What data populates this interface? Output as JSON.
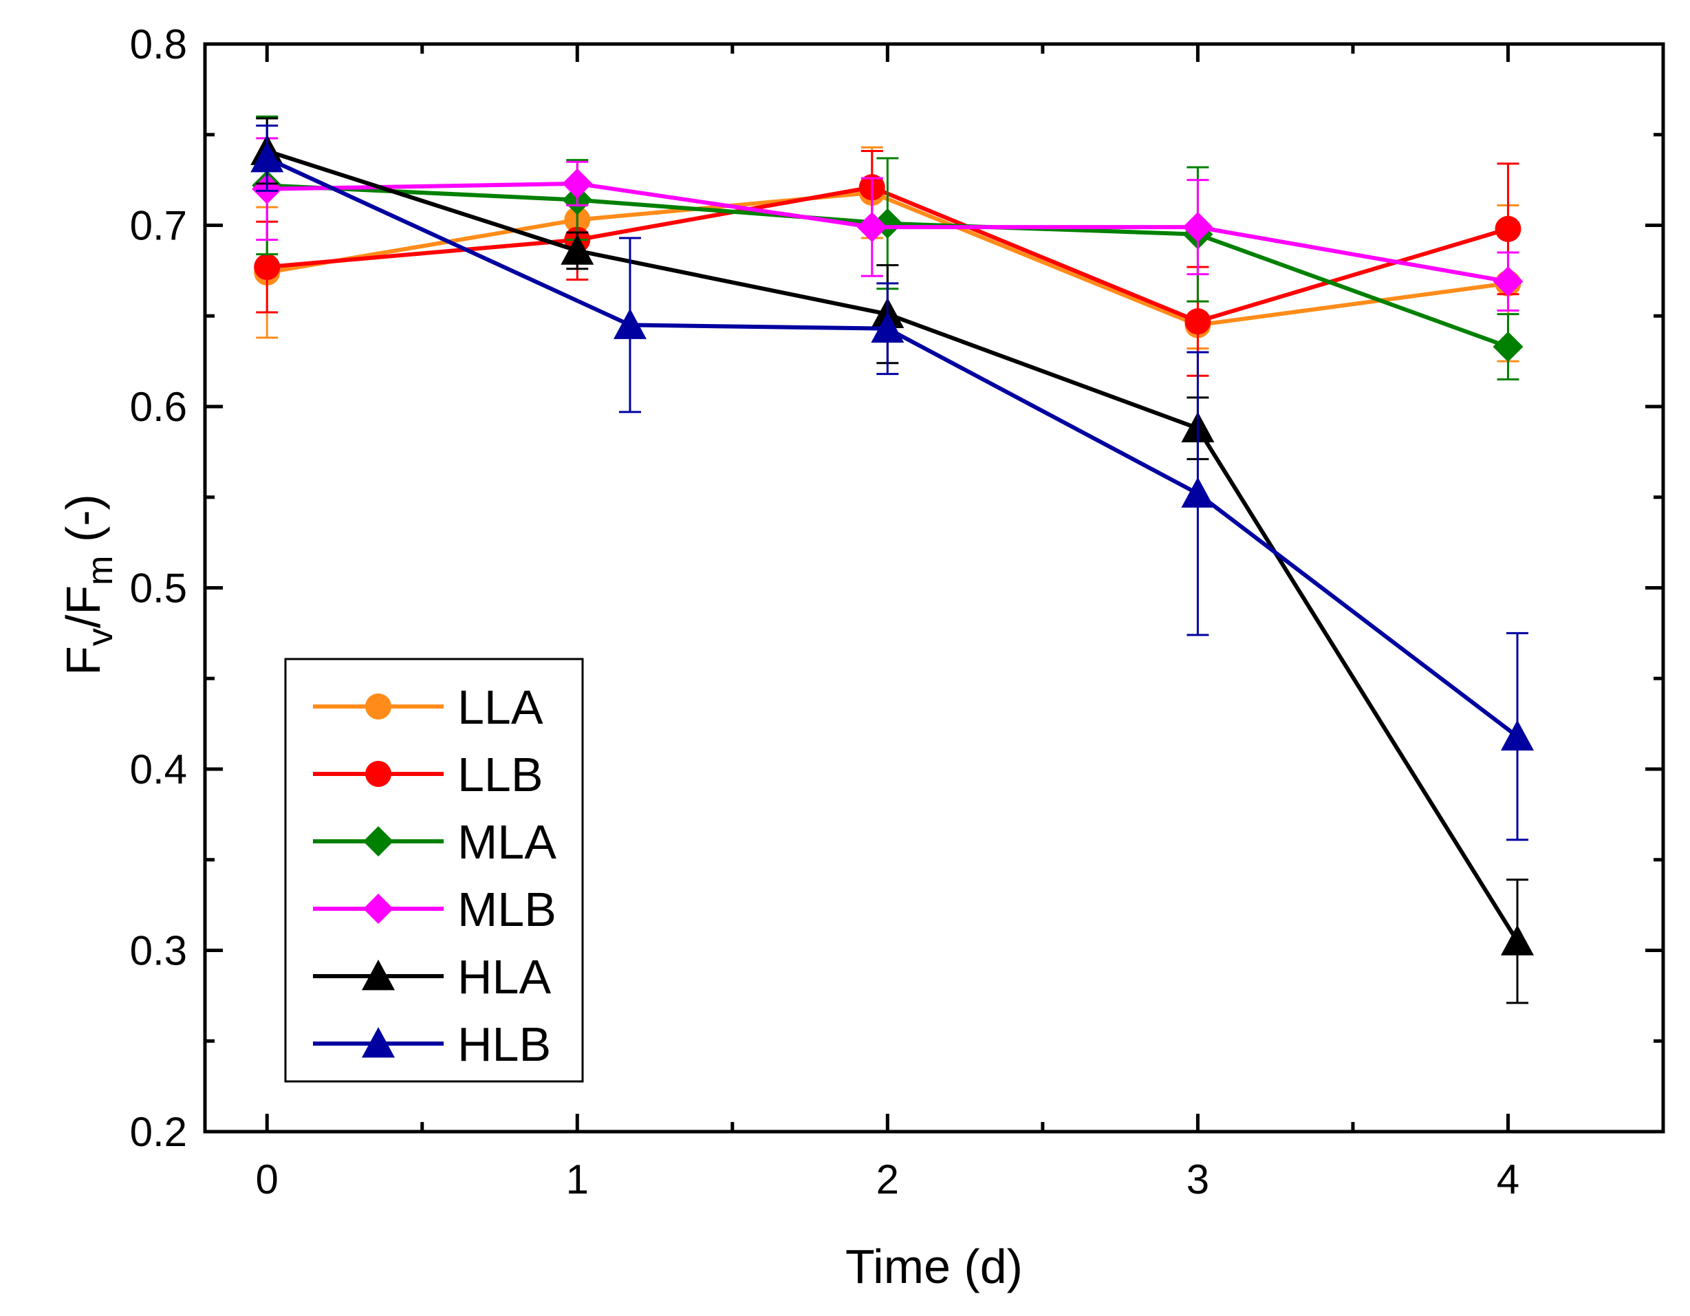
{
  "chart_data": {
    "type": "line",
    "title": "",
    "xlabel": "Time (d)",
    "ylabel_main": "F",
    "ylabel_sub1": "v",
    "ylabel_mid": "/F",
    "ylabel_sub2": "m",
    "ylabel_unit": " (-)",
    "xlim": [
      -0.2,
      4.5
    ],
    "ylim": [
      0.2,
      0.8
    ],
    "xticks": [
      0,
      1,
      2,
      3,
      4
    ],
    "xtick_labels": [
      "0",
      "1",
      "2",
      "3",
      "4"
    ],
    "xminor": [
      0.5,
      1.5,
      2.5,
      3.5
    ],
    "yticks": [
      0.2,
      0.3,
      0.4,
      0.5,
      0.6,
      0.7,
      0.8
    ],
    "ytick_labels": [
      "0.2",
      "0.3",
      "0.4",
      "0.5",
      "0.6",
      "0.7",
      "0.8"
    ],
    "yminor": [
      0.25,
      0.35,
      0.45,
      0.55,
      0.65,
      0.75
    ],
    "legend_position": "lower-left",
    "series": [
      {
        "name": "LLA",
        "color": "#ff8c1a",
        "marker": "circle",
        "x": [
          0,
          1,
          1.95,
          3,
          4
        ],
        "y": [
          0.674,
          0.703,
          0.718,
          0.645,
          0.668
        ],
        "err": [
          0.036,
          0.01,
          0.025,
          0.013,
          0.043
        ]
      },
      {
        "name": "LLB",
        "color": "#ff0000",
        "marker": "circle",
        "x": [
          0,
          1,
          1.95,
          3,
          4
        ],
        "y": [
          0.677,
          0.692,
          0.721,
          0.647,
          0.698
        ],
        "err": [
          0.025,
          0.022,
          0.02,
          0.03,
          0.036
        ]
      },
      {
        "name": "MLA",
        "color": "#008000",
        "marker": "diamond",
        "x": [
          0,
          1,
          2,
          3,
          4
        ],
        "y": [
          0.722,
          0.714,
          0.701,
          0.695,
          0.633
        ],
        "err": [
          0.038,
          0.022,
          0.036,
          0.037,
          0.018
        ]
      },
      {
        "name": "MLB",
        "color": "#ff00ff",
        "marker": "diamond",
        "x": [
          0,
          1,
          1.95,
          3,
          4
        ],
        "y": [
          0.72,
          0.723,
          0.699,
          0.699,
          0.669
        ],
        "err": [
          0.028,
          0.012,
          0.027,
          0.026,
          0.016
        ]
      },
      {
        "name": "HLA",
        "color": "#000000",
        "marker": "triangle",
        "x": [
          0,
          1,
          2,
          3,
          4.03
        ],
        "y": [
          0.741,
          0.686,
          0.651,
          0.588,
          0.305
        ],
        "err": [
          0.018,
          0.01,
          0.027,
          0.017,
          0.034
        ]
      },
      {
        "name": "HLB",
        "color": "#0000a0",
        "marker": "triangle",
        "x": [
          0,
          1.17,
          2,
          3,
          4.03
        ],
        "y": [
          0.737,
          0.645,
          0.643,
          0.552,
          0.418
        ],
        "err": [
          0.018,
          0.048,
          0.025,
          0.078,
          0.057
        ]
      }
    ]
  }
}
